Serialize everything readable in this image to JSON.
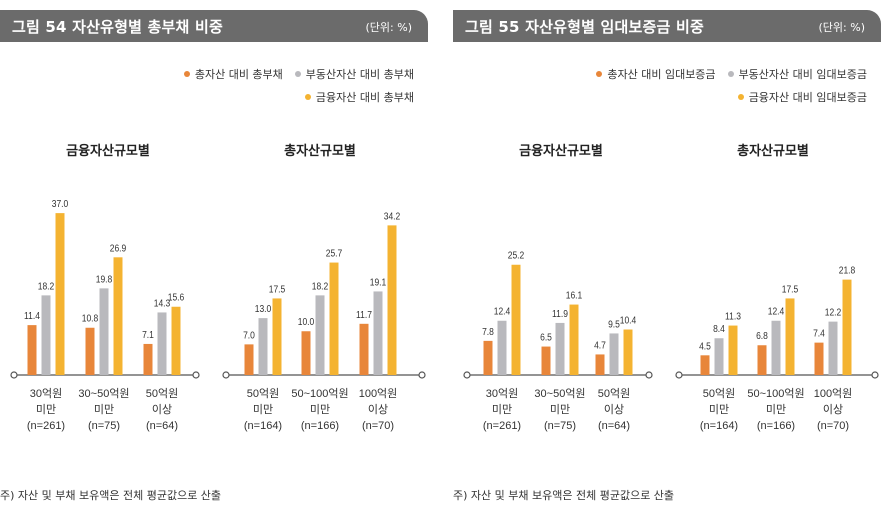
{
  "colors": {
    "total": "#e8863a",
    "real_estate": "#b9b9bd",
    "financial": "#f4b331",
    "header_bg": "#6b6b6b",
    "axis": "#555555"
  },
  "figures": [
    {
      "id": "fig54",
      "title": "그림 54  자산유형별 총부채 비중",
      "unit": "(단위: %)",
      "legend": [
        "총자산 대비 총부채",
        "부동산자산 대비 총부채",
        "금융자산 대비 총부채"
      ],
      "note": "주) 자산 및 부채 보유액은 전체 평균값으로 산출"
    },
    {
      "id": "fig55",
      "title": "그림 55  자산유형별 임대보증금 비중",
      "unit": "(단위: %)",
      "legend": [
        "총자산 대비 임대보증금",
        "부동산자산 대비 임대보증금",
        "금융자산 대비 임대보증금"
      ],
      "note": "주) 자산 및 부채 보유액은 전체 평균값으로 산출"
    }
  ],
  "chart_data": [
    {
      "type": "bar",
      "figure": "그림 54  자산유형별 총부채 비중",
      "title": "금융자산규모별",
      "categories": [
        [
          "30억원",
          "미만",
          "(n=261)"
        ],
        [
          "30~50억원",
          "미만",
          "(n=75)"
        ],
        [
          "50억원",
          "이상",
          "(n=64)"
        ]
      ],
      "series": [
        {
          "name": "총자산 대비 총부채",
          "values": [
            11.4,
            10.8,
            7.1
          ]
        },
        {
          "name": "부동산자산 대비 총부채",
          "values": [
            18.2,
            19.8,
            14.3
          ]
        },
        {
          "name": "금융자산 대비 총부채",
          "values": [
            37.0,
            26.9,
            15.6
          ]
        }
      ],
      "value_labels": [
        [
          "11.4",
          "10.8",
          "7.1"
        ],
        [
          "18.2",
          "19.8",
          "14.3"
        ],
        [
          "37.0",
          "26.9",
          "15.6"
        ]
      ],
      "ylim": [
        0,
        40
      ]
    },
    {
      "type": "bar",
      "figure": "그림 54  자산유형별 총부채 비중",
      "title": "총자산규모별",
      "categories": [
        [
          "50억원",
          "미만",
          "(n=164)"
        ],
        [
          "50~100억원",
          "미만",
          "(n=166)"
        ],
        [
          "100억원",
          "이상",
          "(n=70)"
        ]
      ],
      "series": [
        {
          "name": "총자산 대비 총부채",
          "values": [
            7.0,
            10.0,
            11.7
          ]
        },
        {
          "name": "부동산자산 대비 총부채",
          "values": [
            13.0,
            18.2,
            19.1
          ]
        },
        {
          "name": "금융자산 대비 총부채",
          "values": [
            17.5,
            25.7,
            34.2
          ]
        }
      ],
      "value_labels": [
        [
          "7.0",
          "10.0",
          "11.7"
        ],
        [
          "13.0",
          "18.2",
          "19.1"
        ],
        [
          "17.5",
          "25.7",
          "34.2"
        ]
      ],
      "ylim": [
        0,
        40
      ]
    },
    {
      "type": "bar",
      "figure": "그림 55  자산유형별 임대보증금 비중",
      "title": "금융자산규모별",
      "categories": [
        [
          "30억원",
          "미만",
          "(n=261)"
        ],
        [
          "30~50억원",
          "미만",
          "(n=75)"
        ],
        [
          "50억원",
          "이상",
          "(n=64)"
        ]
      ],
      "series": [
        {
          "name": "총자산 대비 임대보증금",
          "values": [
            7.8,
            6.5,
            4.7
          ]
        },
        {
          "name": "부동산자산 대비 임대보증금",
          "values": [
            12.4,
            11.9,
            9.5
          ]
        },
        {
          "name": "금융자산 대비 임대보증금",
          "values": [
            25.2,
            16.1,
            10.4
          ]
        }
      ],
      "value_labels": [
        [
          "7.8",
          "6.5",
          "4.7"
        ],
        [
          "12.4",
          "11.9",
          "9.5"
        ],
        [
          "25.2",
          "16.1",
          "10.4"
        ]
      ],
      "ylim": [
        0,
        40
      ]
    },
    {
      "type": "bar",
      "figure": "그림 55  자산유형별 임대보증금 비중",
      "title": "총자산규모별",
      "categories": [
        [
          "50억원",
          "미만",
          "(n=164)"
        ],
        [
          "50~100억원",
          "미만",
          "(n=166)"
        ],
        [
          "100억원",
          "이상",
          "(n=70)"
        ]
      ],
      "series": [
        {
          "name": "총자산 대비 임대보증금",
          "values": [
            4.5,
            6.8,
            7.4
          ]
        },
        {
          "name": "부동산자산 대비 임대보증금",
          "values": [
            8.4,
            12.4,
            12.2
          ]
        },
        {
          "name": "금융자산 대비 임대보증금",
          "values": [
            11.3,
            17.5,
            21.8
          ]
        }
      ],
      "value_labels": [
        [
          "4.5",
          "6.8",
          "7.4"
        ],
        [
          "8.4",
          "12.4",
          "12.2"
        ],
        [
          "11.3",
          "17.5",
          "21.8"
        ]
      ],
      "ylim": [
        0,
        40
      ]
    }
  ]
}
